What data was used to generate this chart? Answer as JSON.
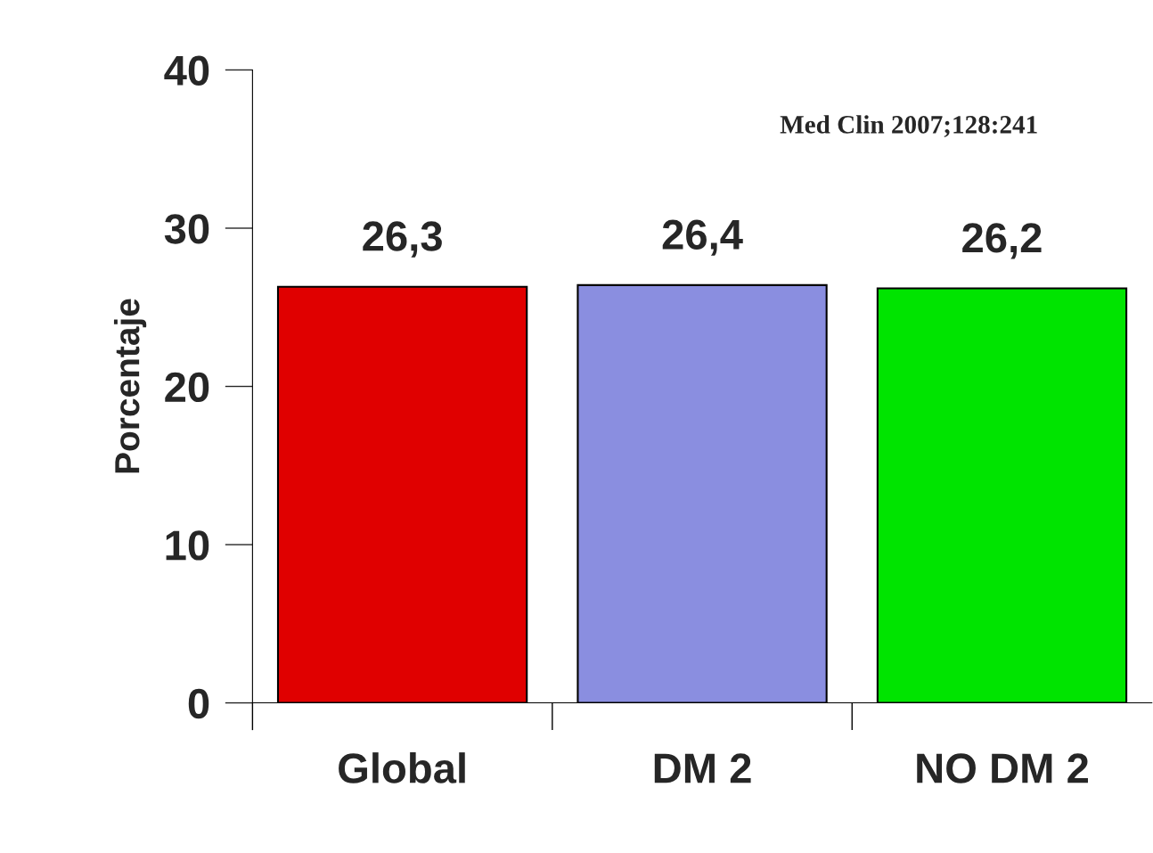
{
  "chart_data": {
    "type": "bar",
    "ylabel": "Porcentaje",
    "categories": [
      "Global",
      "DM 2",
      "NO DM 2"
    ],
    "values": [
      26.3,
      26.4,
      26.2
    ],
    "value_labels": [
      "26,3",
      "26,4",
      "26,2"
    ],
    "colors": [
      "#e00000",
      "#8a8ee0",
      "#00e400"
    ],
    "ylim": [
      0,
      40
    ],
    "yticks": [
      0,
      10,
      20,
      30,
      40
    ],
    "grid": false,
    "legend": false,
    "annotations": [
      "Med Clin 2007;128:241"
    ]
  }
}
